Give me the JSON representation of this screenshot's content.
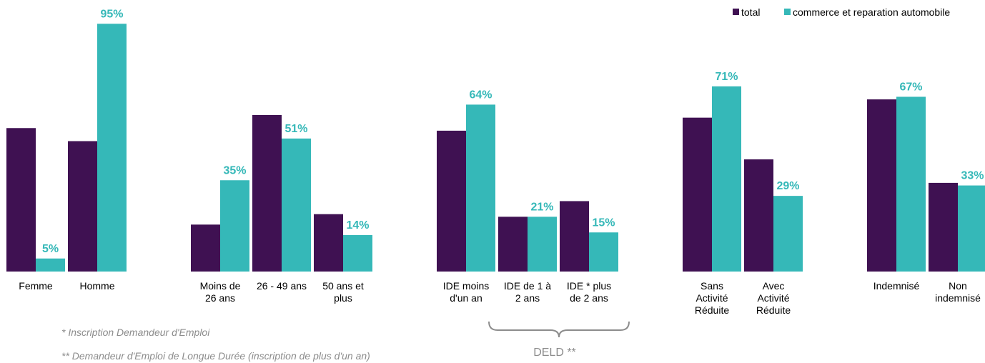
{
  "chart_data": {
    "type": "bar",
    "colors": {
      "total": "#3f1152",
      "commerce": "#35b8b8",
      "footnote": "#8c8c8c"
    },
    "legend": {
      "placement": "top-right",
      "entries": [
        "total",
        "commerce et reparation automobile"
      ]
    },
    "series": [
      {
        "name": "total"
      },
      {
        "name": "commerce et reparation automobile"
      }
    ],
    "ylim": [
      0,
      100
    ],
    "groups": [
      {
        "categories": [
          {
            "label": [
              "Femme"
            ],
            "total": 55,
            "commerce": 5,
            "commerce_label": "5%"
          },
          {
            "label": [
              "Homme"
            ],
            "total": 50,
            "commerce": 95,
            "commerce_label": "95%"
          }
        ]
      },
      {
        "categories": [
          {
            "label": [
              "Moins de",
              "26 ans"
            ],
            "total": 18,
            "commerce": 35,
            "commerce_label": "35%"
          },
          {
            "label": [
              "26 - 49 ans"
            ],
            "total": 60,
            "commerce": 51,
            "commerce_label": "51%"
          },
          {
            "label": [
              "50 ans et",
              "plus"
            ],
            "total": 22,
            "commerce": 14,
            "commerce_label": "14%"
          }
        ]
      },
      {
        "categories": [
          {
            "label": [
              "IDE moins",
              "d'un an"
            ],
            "total": 54,
            "commerce": 64,
            "commerce_label": "64%"
          },
          {
            "label": [
              "IDE de 1 à",
              "2 ans"
            ],
            "total": 21,
            "commerce": 21,
            "commerce_label": "21%"
          },
          {
            "label": [
              "IDE * plus",
              "de 2 ans"
            ],
            "total": 27,
            "commerce": 15,
            "commerce_label": "15%"
          }
        ]
      },
      {
        "categories": [
          {
            "label": [
              "Sans",
              "Activité",
              "Réduite"
            ],
            "total": 59,
            "commerce": 71,
            "commerce_label": "71%"
          },
          {
            "label": [
              "Avec",
              "Activité",
              "Réduite"
            ],
            "total": 43,
            "commerce": 29,
            "commerce_label": "29%"
          }
        ]
      },
      {
        "categories": [
          {
            "label": [
              "Indemnisé"
            ],
            "total": 66,
            "commerce": 67,
            "commerce_label": "67%"
          },
          {
            "label": [
              "Non",
              "indemnisé"
            ],
            "total": 34,
            "commerce": 33,
            "commerce_label": "33%"
          }
        ]
      }
    ],
    "brace": {
      "label": "DELD **",
      "spans": "IDE de 1 à 2 ans – IDE * plus de 2 ans"
    },
    "footnotes": [
      "* Inscription Demandeur d'Emploi",
      "** Demandeur d'Emploi de Longue Durée (inscription de plus d'un an)"
    ]
  }
}
